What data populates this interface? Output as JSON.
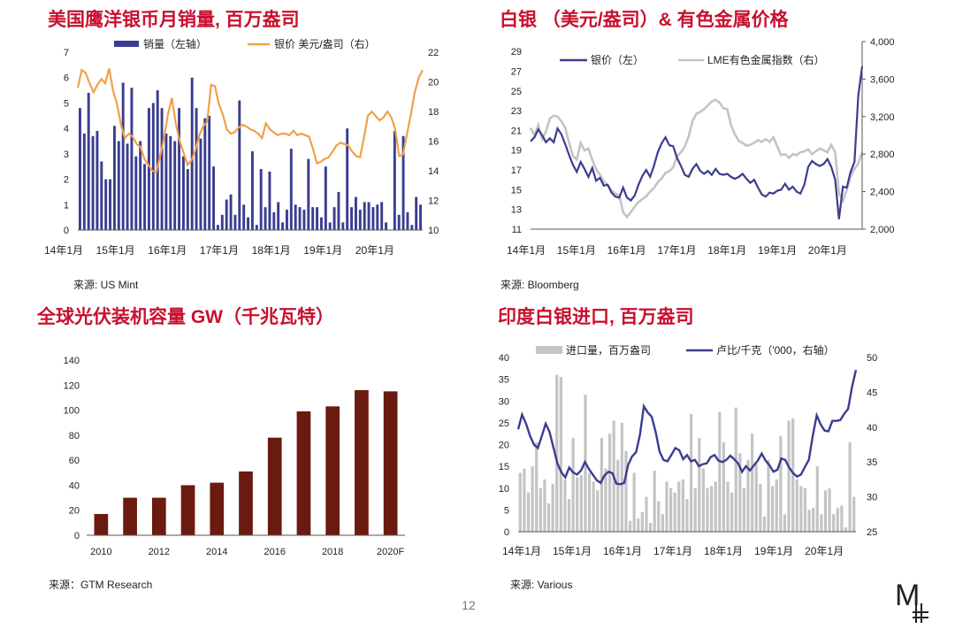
{
  "page_number": "12",
  "logo_text": "M",
  "colors": {
    "title": "#c8102e",
    "navy": "#3a3d8f",
    "orange": "#f0a04b",
    "grey": "#c4c4c4",
    "brown": "#6b1a0f"
  },
  "chart_data": [
    {
      "id": "coins",
      "type": "bar+line",
      "title": "美国鹰洋银币月销量, 百万盎司",
      "source": "来源: US Mint",
      "legend": [
        "销量（左轴）",
        "银价 美元/盎司（右）"
      ],
      "x_ticks": [
        "14年1月",
        "15年1月",
        "16年1月",
        "17年1月",
        "18年1月",
        "19年1月",
        "20年1月"
      ],
      "y_left": {
        "min": 0,
        "max": 7,
        "ticks": [
          "0",
          "1",
          "2",
          "3",
          "4",
          "5",
          "6",
          "7"
        ]
      },
      "y_right": {
        "min": 10,
        "max": 22,
        "ticks": [
          "10",
          "12",
          "14",
          "16",
          "18",
          "20",
          "22"
        ]
      },
      "bars": [
        4.8,
        3.8,
        5.4,
        3.7,
        3.9,
        2.7,
        2.0,
        2.0,
        4.1,
        3.5,
        5.8,
        3.4,
        5.6,
        2.9,
        3.5,
        2.6,
        4.8,
        5.0,
        5.5,
        4.8,
        3.8,
        3.7,
        3.5,
        4.8,
        2.9,
        2.4,
        6.0,
        4.8,
        3.6,
        4.4,
        4.5,
        2.5,
        0.2,
        0.6,
        1.2,
        1.4,
        0.6,
        5.1,
        1.0,
        0.5,
        3.1,
        0.2,
        2.4,
        0.9,
        2.3,
        0.7,
        1.1,
        0.3,
        0.8,
        3.2,
        1.0,
        0.9,
        0.8,
        2.8,
        0.9,
        0.9,
        0.5,
        2.5,
        0.3,
        0.9,
        1.5,
        0.3,
        4.0,
        0.9,
        1.3,
        0.8,
        1.1,
        1.1,
        0.9,
        1.0,
        1.1,
        0.3,
        0.0,
        3.9,
        0.6,
        3.7,
        0.7,
        0.2,
        1.3,
        1.0
      ],
      "line": [
        19.6,
        20.8,
        20.6,
        19.9,
        19.3,
        19.8,
        20.2,
        19.9,
        20.9,
        19.4,
        18.5,
        17.1,
        16.2,
        16.5,
        16.3,
        15.8,
        15.6,
        14.8,
        14.4,
        14.0,
        13.9,
        15.0,
        16.2,
        17.8,
        18.9,
        17.2,
        16.0,
        15.2,
        14.4,
        14.7,
        15.4,
        16.4,
        17.0,
        17.3,
        19.8,
        19.7,
        18.5,
        17.8,
        16.8,
        16.5,
        16.6,
        16.9,
        17.1,
        17.0,
        16.8,
        16.7,
        16.5,
        16.2,
        17.2,
        16.8,
        16.6,
        16.4,
        16.5,
        16.5,
        16.4,
        16.7,
        16.4,
        16.5,
        16.4,
        16.3,
        15.5,
        14.5,
        14.6,
        14.8,
        14.9,
        15.3,
        15.7,
        15.9,
        15.8,
        15.7,
        15.3,
        15.0,
        14.9,
        16.2,
        17.7,
        18.0,
        17.7,
        17.4,
        17.6,
        18.0,
        17.6,
        16.8,
        15.0,
        15.1,
        16.5,
        17.8,
        19.3,
        20.3,
        20.8
      ]
    },
    {
      "id": "silver_lme",
      "type": "line-dual-axis",
      "title": "白银 （美元/盎司）& 有色金属价格",
      "source": "来源: Bloomberg",
      "legend": [
        "银价（左）",
        "LME有色金属指数（右）"
      ],
      "x_ticks": [
        "14年1月",
        "15年1月",
        "16年1月",
        "17年1月",
        "18年1月",
        "19年1月",
        "20年1月"
      ],
      "y_left": {
        "min": 11,
        "max": 30,
        "ticks": [
          "11",
          "13",
          "15",
          "17",
          "19",
          "21",
          "23",
          "25",
          "27",
          "29"
        ]
      },
      "y_right": {
        "min": 2000,
        "max": 4000,
        "ticks": [
          "2,000",
          "2,400",
          "2,800",
          "3,200",
          "3,600",
          "4,000"
        ]
      },
      "silver": [
        19.9,
        20.3,
        21.1,
        20.5,
        19.8,
        20.2,
        19.8,
        21.2,
        20.6,
        19.6,
        18.5,
        17.5,
        16.8,
        17.8,
        17.1,
        16.3,
        17.2,
        15.9,
        16.2,
        15.4,
        15.5,
        14.7,
        14.3,
        14.2,
        15.2,
        14.2,
        13.9,
        14.4,
        15.5,
        16.4,
        17.0,
        16.3,
        17.4,
        18.8,
        19.7,
        20.3,
        19.5,
        19.4,
        18.2,
        17.4,
        16.5,
        16.3,
        17.1,
        17.6,
        16.9,
        16.6,
        16.9,
        16.5,
        17.1,
        16.6,
        16.5,
        16.6,
        16.3,
        16.1,
        16.3,
        16.6,
        16.1,
        15.7,
        16.0,
        15.2,
        14.5,
        14.3,
        14.7,
        14.6,
        14.9,
        15.0,
        15.6,
        15.0,
        15.3,
        14.8,
        14.6,
        15.5,
        17.3,
        17.9,
        17.6,
        17.4,
        17.6,
        18.1,
        17.3,
        16.0,
        12.0,
        15.3,
        15.2,
        16.8,
        17.8,
        24.5,
        27.5
      ],
      "lme": [
        3080,
        3000,
        3110,
        2960,
        3040,
        3180,
        3210,
        3200,
        3150,
        3080,
        2920,
        2780,
        2740,
        2920,
        2840,
        2860,
        2740,
        2640,
        2580,
        2510,
        2470,
        2410,
        2380,
        2360,
        2180,
        2130,
        2180,
        2240,
        2290,
        2320,
        2350,
        2400,
        2440,
        2500,
        2540,
        2600,
        2620,
        2660,
        2780,
        2820,
        2880,
        2990,
        3150,
        3230,
        3250,
        3280,
        3320,
        3360,
        3380,
        3350,
        3290,
        3280,
        3110,
        3010,
        2940,
        2920,
        2890,
        2900,
        2920,
        2950,
        2930,
        2960,
        2930,
        2980,
        2880,
        2790,
        2800,
        2760,
        2800,
        2790,
        2820,
        2830,
        2850,
        2800,
        2830,
        2860,
        2840,
        2820,
        2900,
        2820,
        2380,
        2300,
        2420,
        2560,
        2640,
        2700,
        2820
      ]
    },
    {
      "id": "pv",
      "type": "bar",
      "title": "全球光伏装机容量 GW（千兆瓦特）",
      "source": "来源：GTM Research",
      "categories": [
        "2010",
        "2011",
        "2012",
        "2013",
        "2014",
        "2015",
        "2016",
        "2017",
        "2018",
        "2019",
        "2020F"
      ],
      "x_labels": [
        "2010",
        "",
        "2012",
        "",
        "2014",
        "",
        "2016",
        "",
        "2018",
        "",
        "2020F"
      ],
      "values": [
        17,
        30,
        30,
        40,
        42,
        51,
        78,
        99,
        103,
        116,
        115
      ],
      "y": {
        "min": 0,
        "max": 140,
        "ticks": [
          "0",
          "20",
          "40",
          "60",
          "80",
          "100",
          "120",
          "140"
        ]
      }
    },
    {
      "id": "india",
      "type": "bar+line",
      "title": "印度白银进口, 百万盎司",
      "source": "来源: Various",
      "legend": [
        "进口量，百万盎司",
        "卢比/千克（'000，右轴）"
      ],
      "x_ticks": [
        "14年1月",
        "15年1月",
        "16年1月",
        "17年1月",
        "18年1月",
        "19年1月",
        "20年1月"
      ],
      "y_left": {
        "min": 0,
        "max": 40,
        "ticks": [
          "0",
          "5",
          "10",
          "15",
          "20",
          "25",
          "30",
          "35",
          "40"
        ]
      },
      "y_right": {
        "min": 25,
        "max": 50,
        "ticks": [
          "25",
          "30",
          "35",
          "40",
          "45",
          "50"
        ]
      },
      "bars": [
        13.5,
        14.5,
        9.0,
        15.0,
        20.5,
        10.0,
        12.0,
        6.5,
        11.0,
        36.0,
        35.5,
        12.0,
        7.5,
        21.5,
        12.5,
        13.0,
        31.5,
        13.5,
        11.5,
        9.5,
        21.5,
        14.5,
        22.5,
        25.5,
        16.5,
        25.0,
        18.5,
        2.5,
        13.5,
        3.0,
        4.5,
        8.0,
        2.0,
        14.0,
        7.0,
        4.0,
        11.5,
        10.0,
        9.0,
        11.5,
        12.0,
        7.5,
        27.0,
        10.0,
        21.5,
        14.5,
        10.0,
        10.5,
        11.5,
        27.5,
        20.5,
        11.5,
        9.0,
        28.5,
        18.0,
        10.0,
        16.5,
        22.5,
        15.5,
        11.0,
        3.5,
        16.5,
        10.5,
        12.0,
        22.0,
        4.0,
        25.5,
        26.0,
        12.0,
        10.5,
        10.0,
        5.0,
        5.5,
        15.0,
        4.0,
        9.5,
        10.0,
        4.0,
        5.5,
        6.0,
        1.0,
        20.5,
        8.0
      ],
      "line": [
        39.7,
        41.8,
        40.5,
        38.8,
        37.5,
        37.0,
        38.7,
        40.5,
        39.3,
        37.0,
        34.8,
        33.5,
        32.8,
        34.2,
        33.5,
        33.2,
        33.8,
        35.0,
        34.0,
        33.2,
        32.4,
        32.0,
        33.1,
        33.6,
        33.4,
        31.9,
        31.8,
        32.0,
        34.6,
        35.8,
        36.4,
        38.9,
        43.0,
        42.1,
        41.5,
        39.3,
        36.5,
        35.3,
        35.1,
        36.0,
        37.0,
        36.7,
        35.4,
        36.0,
        35.1,
        35.3,
        34.4,
        34.7,
        34.8,
        35.7,
        36.0,
        35.2,
        35.0,
        35.3,
        35.9,
        35.4,
        34.8,
        33.6,
        34.4,
        33.8,
        34.5,
        35.2,
        36.2,
        35.2,
        34.5,
        33.6,
        33.9,
        35.5,
        35.3,
        34.2,
        33.4,
        32.9,
        33.2,
        34.3,
        35.3,
        38.7,
        41.7,
        40.4,
        39.5,
        39.4,
        40.9,
        40.9,
        41.0,
        41.9,
        42.6,
        45.8,
        48.2
      ],
      "note": ""
    }
  ]
}
